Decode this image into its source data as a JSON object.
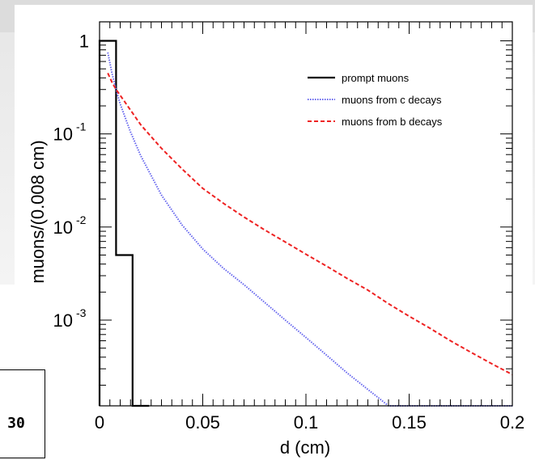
{
  "side_label": "30",
  "chart_data": {
    "type": "line",
    "title": "",
    "xlabel": "d (cm)",
    "ylabel": "muons/(0.008 cm)",
    "xlim": [
      0,
      0.2
    ],
    "ylim": [
      0.00012,
      1.6
    ],
    "yscale": "log",
    "grid": false,
    "legend_position": "top-right",
    "x_ticks": [
      {
        "value": 0,
        "label": "0"
      },
      {
        "value": 0.05,
        "label": "0.05"
      },
      {
        "value": 0.1,
        "label": "0.1"
      },
      {
        "value": 0.15,
        "label": "0.15"
      },
      {
        "value": 0.2,
        "label": "0.2"
      }
    ],
    "y_ticks": [
      {
        "value": 1,
        "label": "1",
        "exp": ""
      },
      {
        "value": 0.1,
        "label": "10",
        "exp": "-1"
      },
      {
        "value": 0.01,
        "label": "10",
        "exp": "-2"
      },
      {
        "value": 0.001,
        "label": "10",
        "exp": "-3"
      }
    ],
    "series": [
      {
        "name": "prompt muons",
        "color": "#000000",
        "style": "solid",
        "kind": "step",
        "bins": [
          {
            "x0": 0,
            "x1": 0.008,
            "y": 1.0
          },
          {
            "x0": 0.008,
            "x1": 0.016,
            "y": 0.005
          },
          {
            "x0": 0.016,
            "x1": 0.024,
            "y": 0.0001
          }
        ]
      },
      {
        "name": "muons from c decays",
        "color": "#6666ee",
        "style": "dotted",
        "kind": "line",
        "points": [
          [
            0.004,
            0.75
          ],
          [
            0.006,
            0.45
          ],
          [
            0.008,
            0.3
          ],
          [
            0.01,
            0.21
          ],
          [
            0.015,
            0.105
          ],
          [
            0.02,
            0.058
          ],
          [
            0.03,
            0.022
          ],
          [
            0.04,
            0.0105
          ],
          [
            0.05,
            0.0058
          ],
          [
            0.06,
            0.0036
          ],
          [
            0.07,
            0.0024
          ],
          [
            0.08,
            0.00155
          ],
          [
            0.09,
            0.001
          ],
          [
            0.1,
            0.00065
          ],
          [
            0.11,
            0.00042
          ],
          [
            0.12,
            0.00027
          ],
          [
            0.13,
            0.00018
          ],
          [
            0.14,
            0.00012
          ],
          [
            0.2,
            0.00012
          ]
        ]
      },
      {
        "name": "muons from b decays",
        "color": "#ee2222",
        "style": "dashed",
        "kind": "line",
        "points": [
          [
            0.004,
            0.45
          ],
          [
            0.006,
            0.36
          ],
          [
            0.008,
            0.3
          ],
          [
            0.01,
            0.26
          ],
          [
            0.02,
            0.125
          ],
          [
            0.03,
            0.07
          ],
          [
            0.04,
            0.042
          ],
          [
            0.05,
            0.026
          ],
          [
            0.06,
            0.018
          ],
          [
            0.07,
            0.0128
          ],
          [
            0.08,
            0.0093
          ],
          [
            0.09,
            0.0069
          ],
          [
            0.1,
            0.0051
          ],
          [
            0.11,
            0.0038
          ],
          [
            0.12,
            0.0028
          ],
          [
            0.13,
            0.0021
          ],
          [
            0.14,
            0.0015
          ],
          [
            0.15,
            0.0011
          ],
          [
            0.16,
            0.00082
          ],
          [
            0.17,
            0.0006
          ],
          [
            0.18,
            0.00045
          ],
          [
            0.19,
            0.00034
          ],
          [
            0.2,
            0.00026
          ]
        ]
      }
    ]
  }
}
